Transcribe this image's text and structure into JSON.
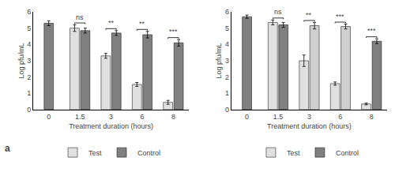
{
  "chart_data": [
    {
      "type": "bar",
      "categories": [
        "0",
        "1.5",
        "3",
        "6",
        "8"
      ],
      "xlabel": "Treatment duration (hours)",
      "ylabel": "Log pfu/mL",
      "series": [
        {
          "name": "Test",
          "color": "#e0e0e0",
          "values": [
            null,
            5.0,
            3.3,
            1.55,
            0.45
          ],
          "errors": [
            null,
            0.2,
            0.15,
            0.12,
            0.12
          ]
        },
        {
          "name": "Control",
          "color": "#808080",
          "values": [
            5.3,
            4.85,
            4.7,
            4.6,
            4.1
          ],
          "errors": [
            0.15,
            0.15,
            0.15,
            0.2,
            0.2
          ]
        }
      ],
      "annotations": [
        {
          "category": "1.5",
          "text": "ns"
        },
        {
          "category": "3",
          "text": "**"
        },
        {
          "category": "6",
          "text": "**"
        },
        {
          "category": "8",
          "text": "***"
        },
        {
          "text": "a"
        }
      ],
      "ylim": [
        0,
        6
      ],
      "yticks": [
        0,
        1,
        2,
        3,
        4,
        5,
        6
      ],
      "grid": false,
      "legend": "bottom"
    },
    {
      "type": "bar",
      "categories": [
        "0",
        "1.5",
        "3",
        "6",
        "8"
      ],
      "xlabel": "Treatment duration (hours)",
      "ylabel": "Log pfu/mL",
      "series": [
        {
          "name": "Test",
          "color": "#e0e0e0",
          "values": [
            null,
            5.35,
            3.0,
            1.6,
            0.35
          ],
          "errors": [
            null,
            0.15,
            0.35,
            0.1,
            0.05
          ]
        },
        {
          "name": "Control",
          "colors": [
            "#808080",
            "#808080",
            "#d0d0d0",
            "#d0d0d0",
            "#808080"
          ],
          "values": [
            5.7,
            5.2,
            5.15,
            5.1,
            4.2
          ],
          "errors": [
            0.1,
            0.15,
            0.2,
            0.15,
            0.15
          ]
        }
      ],
      "annotations": [
        {
          "category": "1.5",
          "text": "ns"
        },
        {
          "category": "3",
          "text": "**"
        },
        {
          "category": "6",
          "text": "***"
        },
        {
          "category": "8",
          "text": "***"
        }
      ],
      "ylim": [
        0,
        6
      ],
      "yticks": [
        0,
        1,
        2,
        3,
        4,
        5,
        6
      ],
      "grid": false,
      "legend": "bottom"
    }
  ]
}
